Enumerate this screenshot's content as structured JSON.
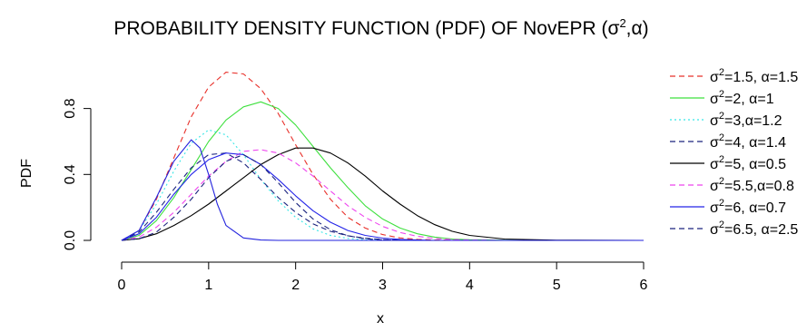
{
  "chart_data": {
    "type": "line",
    "title": "PROBABILITY DENSITY FUNCTION (PDF) OF NovEPR  (σ²,α)",
    "xlabel": "x",
    "ylabel": "PDF",
    "xlim": [
      0,
      6
    ],
    "ylim": [
      0,
      1.04
    ],
    "x_ticks": [
      0,
      1,
      2,
      3,
      4,
      5,
      6
    ],
    "y_ticks": [
      0.0,
      0.4,
      0.8
    ],
    "x_tick_labels": [
      "0",
      "1",
      "2",
      "3",
      "4",
      "5",
      "6"
    ],
    "y_tick_labels": [
      "0.0",
      "0.4",
      "0.8"
    ],
    "grid": false,
    "legend_position": "right",
    "series": [
      {
        "name": "σ²=1.5, α=1.5",
        "name_parts": [
          "σ",
          "2",
          "=1.5, α=1.5"
        ],
        "color": "#e8302a",
        "dash": "dashed",
        "x": [
          0,
          0.2,
          0.4,
          0.6,
          0.8,
          1.0,
          1.2,
          1.4,
          1.6,
          1.8,
          2.0,
          2.2,
          2.4,
          2.6,
          2.8,
          3.0,
          3.2,
          3.4,
          3.6,
          3.8,
          4.0,
          4.4,
          5.0,
          6.0
        ],
        "y": [
          0,
          0.06,
          0.25,
          0.5,
          0.75,
          0.93,
          1.02,
          1.01,
          0.92,
          0.77,
          0.58,
          0.4,
          0.25,
          0.14,
          0.075,
          0.035,
          0.015,
          0.006,
          0.002,
          0.001,
          0,
          0,
          0,
          0
        ]
      },
      {
        "name": "σ²=2, α=1",
        "name_parts": [
          "σ",
          "2",
          "=2, α=1"
        ],
        "color": "#3ee03e",
        "dash": "solid",
        "x": [
          0,
          0.2,
          0.4,
          0.6,
          0.8,
          1.0,
          1.2,
          1.4,
          1.6,
          1.8,
          2.0,
          2.2,
          2.4,
          2.6,
          2.8,
          3.0,
          3.2,
          3.4,
          3.6,
          3.8,
          4.0,
          4.4,
          5.0,
          6.0
        ],
        "y": [
          0,
          0.03,
          0.12,
          0.26,
          0.43,
          0.6,
          0.73,
          0.81,
          0.84,
          0.8,
          0.7,
          0.57,
          0.44,
          0.32,
          0.21,
          0.13,
          0.075,
          0.04,
          0.02,
          0.008,
          0.004,
          0.001,
          0,
          0
        ]
      },
      {
        "name": "σ²=3,α=1.2",
        "name_parts": [
          "σ",
          "2",
          "=3,α=1.2"
        ],
        "color": "#36e6e6",
        "dash": "dotted",
        "x": [
          0,
          0.2,
          0.4,
          0.6,
          0.8,
          1.0,
          1.2,
          1.4,
          1.6,
          1.8,
          2.0,
          2.2,
          2.4,
          2.6,
          2.8,
          3.0,
          3.2,
          3.4,
          3.6,
          3.8,
          4.0,
          4.4,
          5.0,
          6.0
        ],
        "y": [
          0,
          0.06,
          0.22,
          0.42,
          0.59,
          0.67,
          0.64,
          0.52,
          0.37,
          0.24,
          0.14,
          0.07,
          0.03,
          0.012,
          0.004,
          0.001,
          0,
          0,
          0,
          0,
          0,
          0,
          0,
          0
        ]
      },
      {
        "name": "σ²=4, α=1.4",
        "name_parts": [
          "σ",
          "2",
          "=4, α=1.4"
        ],
        "color": "#1a237e",
        "dash": "dashed",
        "x": [
          0,
          0.2,
          0.4,
          0.6,
          0.8,
          1.0,
          1.2,
          1.4,
          1.6,
          1.8,
          2.0,
          2.2,
          2.4,
          2.6,
          2.8,
          3.0,
          3.2,
          3.4,
          3.6,
          3.8,
          4.0,
          4.4,
          5.0,
          6.0
        ],
        "y": [
          0,
          0.05,
          0.17,
          0.31,
          0.44,
          0.52,
          0.53,
          0.47,
          0.37,
          0.26,
          0.17,
          0.1,
          0.055,
          0.028,
          0.013,
          0.005,
          0.002,
          0,
          0,
          0,
          0,
          0,
          0,
          0
        ]
      },
      {
        "name": "σ²=5, α=0.5",
        "name_parts": [
          "σ",
          "2",
          "=5, α=0.5"
        ],
        "color": "#000000",
        "dash": "solid",
        "x": [
          0,
          0.2,
          0.4,
          0.6,
          0.8,
          1.0,
          1.2,
          1.4,
          1.6,
          1.8,
          2.0,
          2.2,
          2.4,
          2.6,
          2.8,
          3.0,
          3.2,
          3.4,
          3.6,
          3.8,
          4.0,
          4.4,
          5.0,
          6.0
        ],
        "y": [
          0,
          0.01,
          0.04,
          0.09,
          0.15,
          0.22,
          0.3,
          0.38,
          0.46,
          0.52,
          0.56,
          0.56,
          0.53,
          0.47,
          0.39,
          0.3,
          0.22,
          0.15,
          0.095,
          0.055,
          0.03,
          0.008,
          0.001,
          0
        ]
      },
      {
        "name": "σ²=5.5,α=0.8",
        "name_parts": [
          "σ",
          "2",
          "=5.5,α=0.8"
        ],
        "color": "#ee44ee",
        "dash": "dashed",
        "x": [
          0,
          0.2,
          0.4,
          0.6,
          0.8,
          1.0,
          1.2,
          1.4,
          1.6,
          1.8,
          2.0,
          2.2,
          2.4,
          2.6,
          2.8,
          3.0,
          3.2,
          3.4,
          3.6,
          3.8,
          4.0,
          4.4,
          5.0,
          6.0
        ],
        "y": [
          0,
          0.02,
          0.08,
          0.17,
          0.28,
          0.39,
          0.48,
          0.54,
          0.55,
          0.53,
          0.47,
          0.39,
          0.3,
          0.21,
          0.14,
          0.085,
          0.048,
          0.025,
          0.012,
          0.005,
          0.002,
          0,
          0,
          0
        ]
      },
      {
        "name": "σ²=6, α=0.7",
        "name_parts": [
          "σ",
          "2",
          "=6, α=0.7"
        ],
        "color": "#2424e8",
        "dash": "solid",
        "x": [
          0,
          0.2,
          0.4,
          0.6,
          0.8,
          1.0,
          1.2,
          1.4,
          1.6,
          1.8,
          2.0,
          2.2,
          2.4,
          2.6,
          2.8,
          3.0,
          3.2,
          3.4,
          3.6,
          3.8,
          4.0,
          4.4,
          5.0,
          6.0
        ],
        "y": [
          0,
          0.04,
          0.14,
          0.28,
          0.4,
          0.49,
          0.53,
          0.52,
          0.46,
          0.37,
          0.27,
          0.18,
          0.11,
          0.06,
          0.03,
          0.014,
          0.006,
          0.002,
          0,
          0,
          0,
          0,
          0,
          0
        ]
      },
      {
        "name": "σ²=6.5, α=2.5",
        "name_parts": [
          "σ",
          "2",
          "=6.5, α=2.5"
        ],
        "color": "#1a237e",
        "dash": "dashed",
        "x": [
          0,
          0.2,
          0.4,
          0.6,
          0.8,
          1.0,
          1.2,
          1.4,
          1.6,
          1.8,
          2.0,
          2.2,
          2.4,
          2.6,
          2.8,
          3.0,
          3.2,
          3.4,
          3.6,
          3.8,
          4.0,
          4.4,
          5.0,
          6.0
        ],
        "y": [
          0,
          0.01,
          0.05,
          0.14,
          0.25,
          0.38,
          0.48,
          0.52,
          0.46,
          0.35,
          0.23,
          0.13,
          0.065,
          0.028,
          0.01,
          0.003,
          0.001,
          0,
          0,
          0,
          0,
          0,
          0,
          0
        ]
      },
      {
        "name": "",
        "name_parts": null,
        "color": "#2222dd",
        "dash": "solid",
        "x": [
          0,
          0.2,
          0.4,
          0.6,
          0.8,
          0.9,
          1.0,
          1.1,
          1.2,
          1.4,
          1.6,
          1.8,
          2.0,
          3.0,
          6.0
        ],
        "y": [
          0,
          0.06,
          0.26,
          0.48,
          0.61,
          0.56,
          0.4,
          0.22,
          0.09,
          0.015,
          0.002,
          0,
          0,
          0,
          0
        ]
      }
    ]
  }
}
